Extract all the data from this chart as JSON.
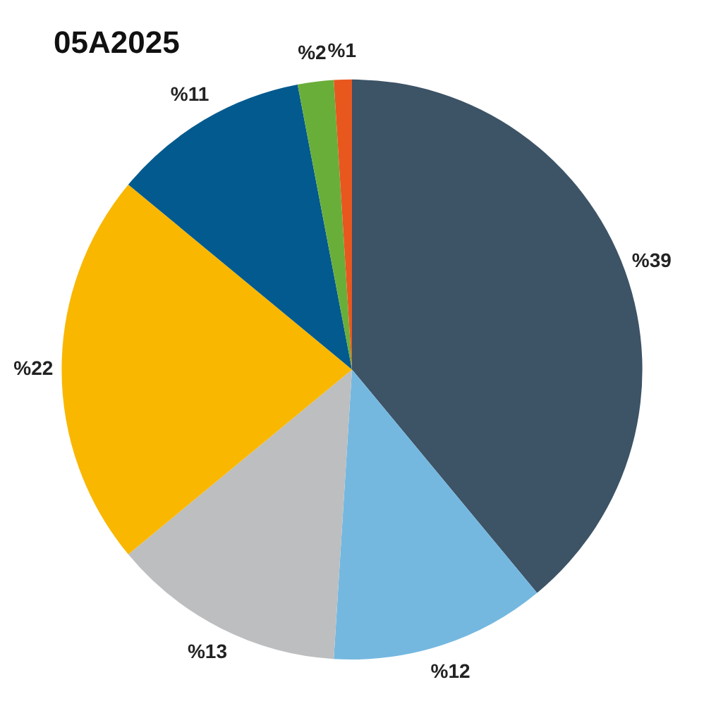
{
  "chart_data": {
    "type": "pie",
    "title": "05A2025",
    "categories": [
      null,
      null,
      null,
      null,
      null,
      null,
      null
    ],
    "values": [
      39,
      12,
      13,
      22,
      11,
      2,
      1
    ],
    "value_labels": [
      "%39",
      "%12",
      "%13",
      "%22",
      "%11",
      "%2",
      "%1"
    ],
    "colors": [
      "#3d5366",
      "#74b8e0",
      "#bcbec0",
      "#f9b700",
      "#025a8e",
      "#6aae3a",
      "#e8571e"
    ],
    "legend": false
  }
}
